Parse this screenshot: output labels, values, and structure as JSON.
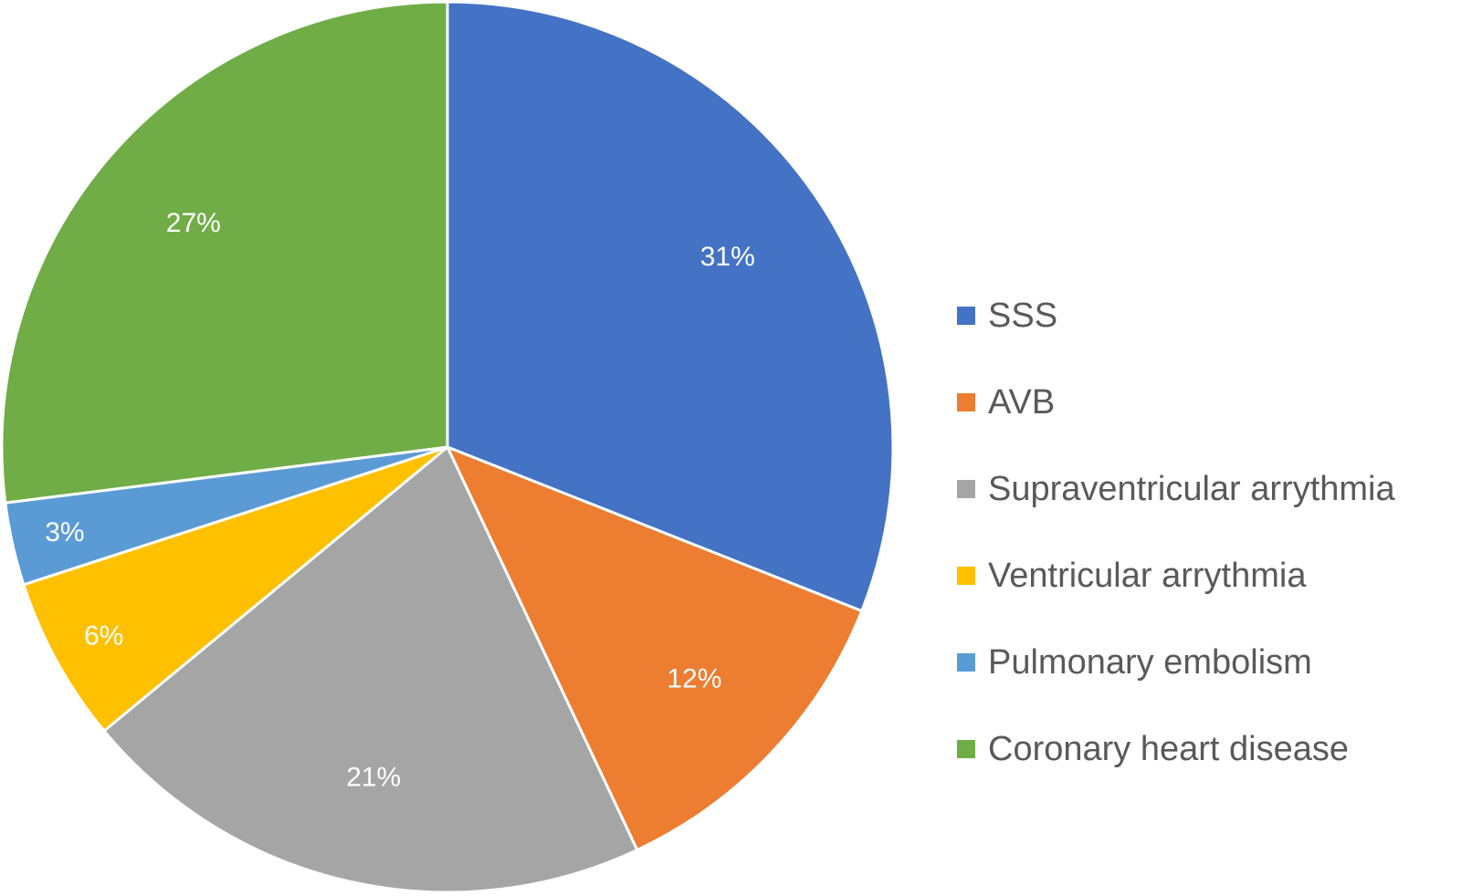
{
  "chart_data": {
    "type": "pie",
    "title": "",
    "start_angle_deg": 0,
    "direction": "clockwise",
    "label_color": "#ffffff",
    "slice_border_color": "#ffffff",
    "legend_position": "right",
    "legend_text_color": "#595959",
    "slices": [
      {
        "label": "SSS",
        "value": 31,
        "value_label": "31%",
        "color": "#4472C4"
      },
      {
        "label": "AVB",
        "value": 12,
        "value_label": "12%",
        "color": "#ED7D31"
      },
      {
        "label": "Supraventricular arrythmia",
        "value": 21,
        "value_label": "21%",
        "color": "#A5A5A5"
      },
      {
        "label": "Ventricular arrythmia",
        "value": 6,
        "value_label": "6%",
        "color": "#FFC000"
      },
      {
        "label": "Pulmonary embolism",
        "value": 3,
        "value_label": "3%",
        "color": "#5B9BD5"
      },
      {
        "label": "Coronary heart disease",
        "value": 27,
        "value_label": "27%",
        "color": "#70AD47"
      }
    ]
  }
}
